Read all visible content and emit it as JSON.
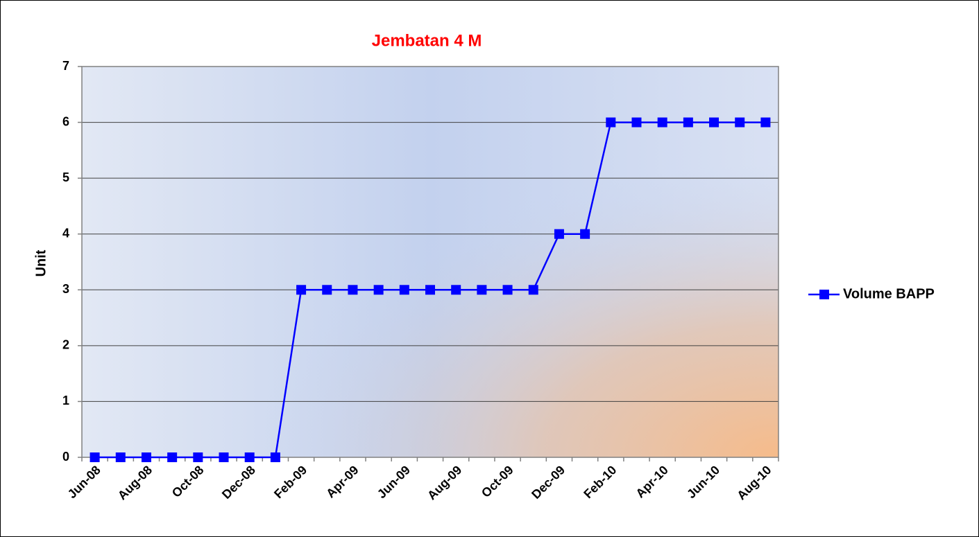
{
  "chart_data": {
    "type": "line",
    "title": "Jembatan 4 M",
    "y_label": "Unit",
    "categories": [
      "Jun-08",
      null,
      "Aug-08",
      null,
      "Oct-08",
      null,
      "Dec-08",
      null,
      "Feb-09",
      null,
      "Apr-09",
      null,
      "Jun-09",
      null,
      "Aug-09",
      null,
      "Oct-09",
      null,
      "Dec-09",
      null,
      "Feb-10",
      null,
      "Apr-10",
      null,
      "Jun-10",
      null,
      "Aug-10"
    ],
    "series": [
      {
        "name": "Volume BAPP",
        "color": "#0000ff",
        "values": [
          0,
          0,
          0,
          0,
          0,
          0,
          0,
          0,
          3,
          3,
          3,
          3,
          3,
          3,
          3,
          3,
          3,
          3,
          4,
          4,
          6,
          6,
          6,
          6,
          6,
          6,
          6
        ]
      }
    ],
    "ylim": [
      0,
      7
    ],
    "yticks": [
      0,
      1,
      2,
      3,
      4,
      5,
      6,
      7
    ],
    "grid": true,
    "legend": "right"
  }
}
